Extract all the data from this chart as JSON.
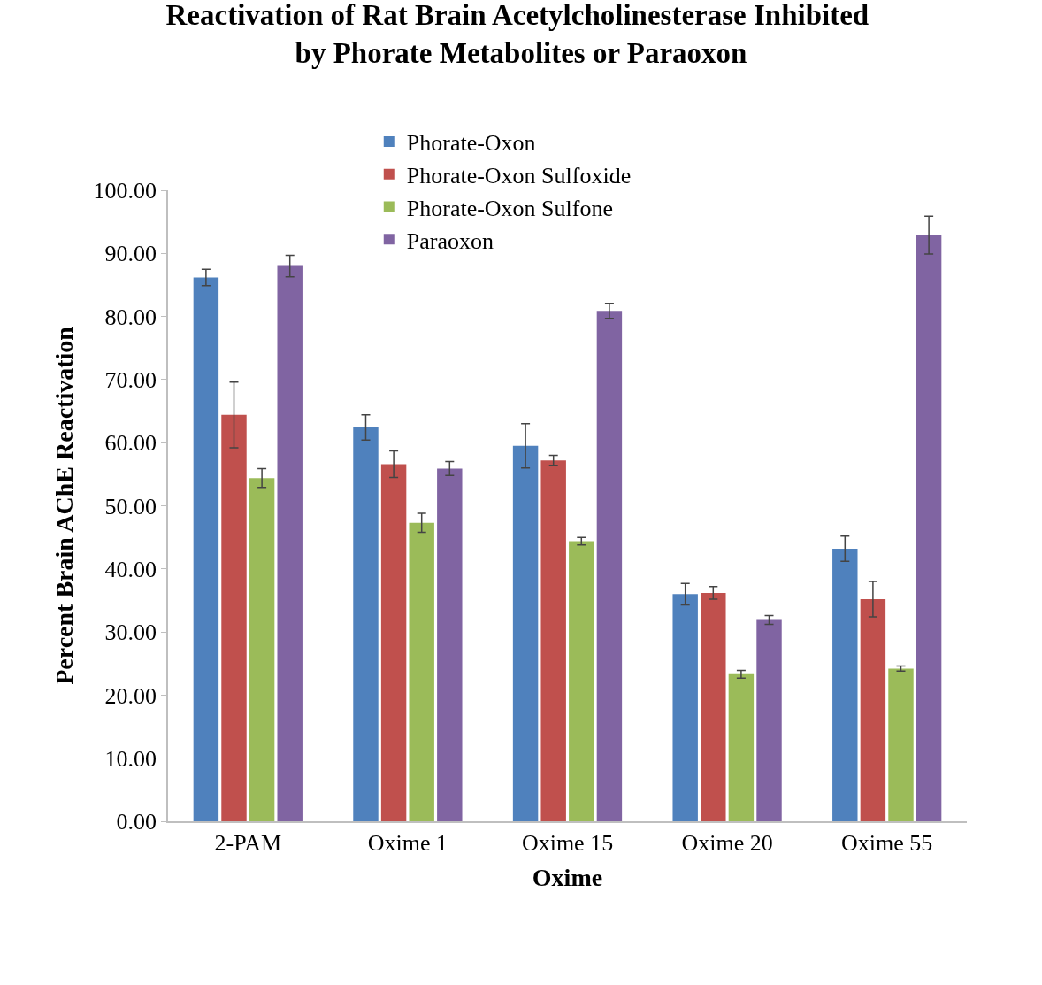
{
  "chart_data": {
    "type": "bar",
    "title": "Reactivation of Rat Brain Acetylcholinesterase Inhibited by Phorate Metabolites or Paraoxon",
    "xlabel": "Oxime",
    "ylabel": "Percent Brain AChE Reactivation",
    "categories": [
      "2-PAM",
      "Oxime 1",
      "Oxime 15",
      "Oxime 20",
      "Oxime 55"
    ],
    "series": [
      {
        "name": "Phorate-Oxon",
        "color": "#4f81bd",
        "values": [
          86.2,
          62.4,
          59.5,
          36.0,
          43.2
        ],
        "errors": [
          1.3,
          2.0,
          3.5,
          1.7,
          2.0
        ]
      },
      {
        "name": "Phorate-Oxon Sulfoxide",
        "color": "#c0504d",
        "values": [
          64.4,
          56.6,
          57.2,
          36.2,
          35.2
        ],
        "errors": [
          5.2,
          2.1,
          0.8,
          1.0,
          2.8
        ]
      },
      {
        "name": "Phorate-Oxon Sulfone",
        "color": "#9bbb59",
        "values": [
          54.4,
          47.3,
          44.4,
          23.3,
          24.2
        ],
        "errors": [
          1.5,
          1.5,
          0.6,
          0.6,
          0.4
        ]
      },
      {
        "name": "Paraoxon",
        "color": "#8064a2",
        "values": [
          88.0,
          55.9,
          80.9,
          31.9,
          92.9
        ],
        "errors": [
          1.7,
          1.1,
          1.2,
          0.7,
          3.0
        ]
      }
    ],
    "ylim": [
      0,
      100
    ],
    "yticks": [
      {
        "value": 0,
        "label": "0.00"
      },
      {
        "value": 10,
        "label": "10.00"
      },
      {
        "value": 20,
        "label": "20.00"
      },
      {
        "value": 30,
        "label": "30.00"
      },
      {
        "value": 40,
        "label": "40.00"
      },
      {
        "value": 50,
        "label": "50.00"
      },
      {
        "value": 60,
        "label": "60.00"
      },
      {
        "value": 70,
        "label": "70.00"
      },
      {
        "value": 80,
        "label": "80.00"
      },
      {
        "value": 90,
        "label": "90.00"
      },
      {
        "value": 100,
        "label": "100.00"
      }
    ],
    "grid": false,
    "legend": "top"
  }
}
